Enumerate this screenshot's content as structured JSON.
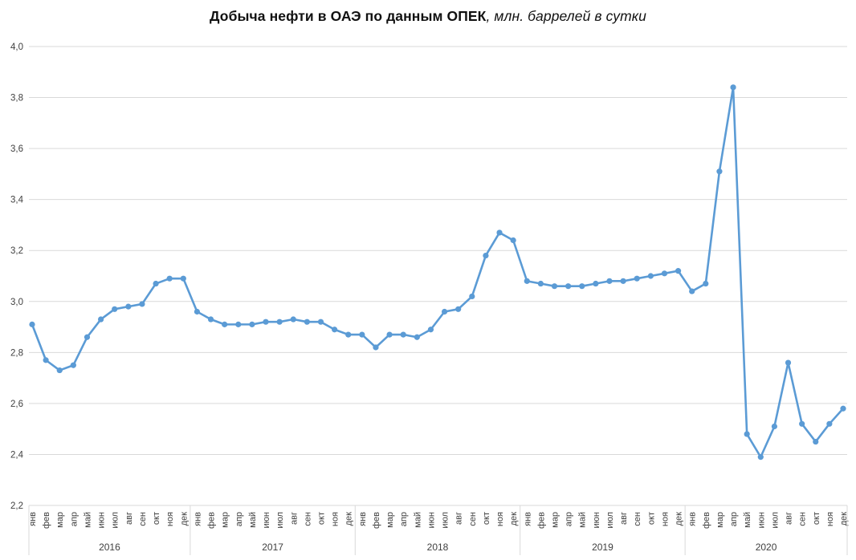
{
  "title": {
    "bold": "Добыча нефти в ОАЭ по данным ОПЕК",
    "italic": ", млн. баррелей в сутки"
  },
  "chart_data": {
    "type": "line",
    "title": "Добыча нефти в ОАЭ по данным ОПЕК, млн. баррелей в сутки",
    "x_years": [
      "2016",
      "2017",
      "2018",
      "2019",
      "2020"
    ],
    "x_months": [
      "янв",
      "фев",
      "мар",
      "апр",
      "май",
      "июн",
      "июл",
      "авг",
      "сен",
      "окт",
      "ноя",
      "дек"
    ],
    "series": [
      {
        "name": "Добыча нефти ОАЭ",
        "values": [
          2.91,
          2.77,
          2.73,
          2.75,
          2.86,
          2.93,
          2.97,
          2.98,
          2.99,
          3.07,
          3.09,
          3.09,
          2.96,
          2.93,
          2.91,
          2.91,
          2.91,
          2.92,
          2.92,
          2.93,
          2.92,
          2.92,
          2.89,
          2.87,
          2.87,
          2.82,
          2.87,
          2.87,
          2.86,
          2.89,
          2.96,
          2.97,
          3.02,
          3.18,
          3.27,
          3.24,
          3.08,
          3.07,
          3.06,
          3.06,
          3.06,
          3.07,
          3.08,
          3.08,
          3.09,
          3.1,
          3.11,
          3.12,
          3.04,
          3.07,
          3.51,
          3.84,
          2.48,
          2.39,
          2.51,
          2.76,
          2.52,
          2.45,
          2.52,
          2.58
        ]
      }
    ],
    "ylim": [
      2.2,
      4.0
    ],
    "ytick_step": 0.2,
    "ytick_labels": [
      "4,0",
      "3,8",
      "3,6",
      "3,4",
      "3,2",
      "3,0",
      "2,8",
      "2,6",
      "2,4",
      "2,2"
    ],
    "grid": true,
    "legend": "none",
    "line_color": "#5B9BD5",
    "marker": "circle",
    "gridline_color": "#D9D9D9",
    "tick_label_color": "#3F3F3F"
  }
}
